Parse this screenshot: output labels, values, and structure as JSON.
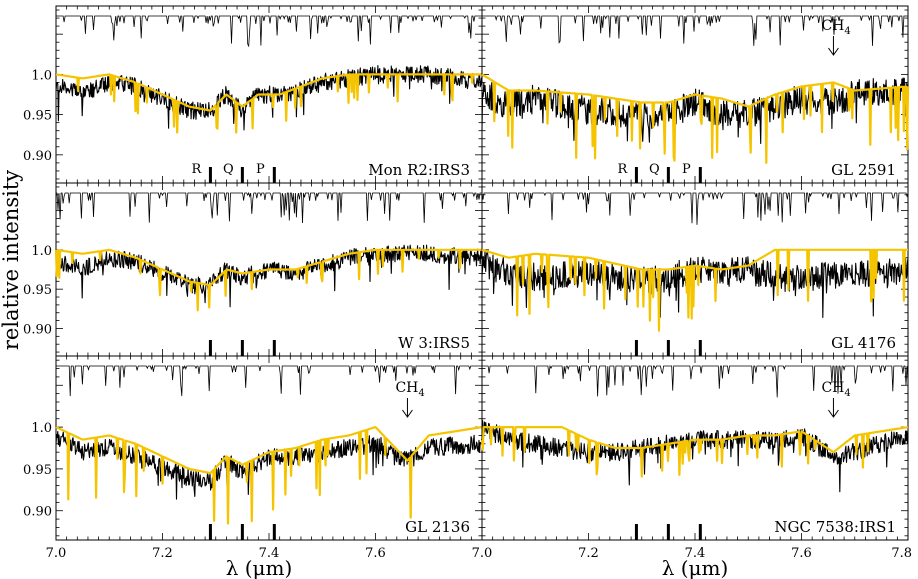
{
  "figure": {
    "ylabel": "relative intensity",
    "xlabel": "λ (μm)",
    "model_color": "#f5c400",
    "data_color": "#000000",
    "telluric_color": "#000000"
  },
  "chart_data": [
    {
      "type": "line",
      "panel": "Mon R2:IRS3",
      "xlim": [
        7.0,
        7.8
      ],
      "ylim": [
        0.865,
        1.085
      ],
      "yticks": [
        "1.0",
        "0.95",
        "0.90"
      ],
      "xticks": [],
      "branch_labels": [
        "R",
        "Q",
        "P"
      ],
      "branch_positions": [
        7.29,
        7.35,
        7.41
      ],
      "series": [
        {
          "name": "",
          "kind": "observed",
          "x": [
            7.0,
            7.05,
            7.1,
            7.15,
            7.2,
            7.25,
            7.29,
            7.32,
            7.35,
            7.38,
            7.42,
            7.46,
            7.5,
            7.55,
            7.6,
            7.7,
            7.8
          ],
          "y": [
            0.99,
            0.975,
            0.99,
            0.985,
            0.97,
            0.955,
            0.955,
            0.975,
            0.955,
            0.975,
            0.975,
            0.98,
            0.99,
            0.995,
            1.0,
            1.0,
            0.99
          ]
        },
        {
          "name": "",
          "kind": "model",
          "x": [
            7.0,
            7.05,
            7.1,
            7.15,
            7.2,
            7.25,
            7.29,
            7.32,
            7.35,
            7.38,
            7.42,
            7.46,
            7.5,
            7.55,
            7.6,
            7.7,
            7.8
          ],
          "y": [
            1.0,
            0.995,
            1.0,
            0.99,
            0.975,
            0.96,
            0.955,
            0.975,
            0.96,
            0.975,
            0.975,
            0.985,
            0.995,
            1.0,
            1.0,
            1.0,
            1.0
          ]
        }
      ]
    },
    {
      "type": "line",
      "panel": "GL 2591",
      "xlim": [
        7.0,
        7.8
      ],
      "ylim": [
        0.865,
        1.085
      ],
      "yticks": [],
      "xticks": [],
      "branch_labels": [
        "R",
        "Q",
        "P"
      ],
      "branch_positions": [
        7.29,
        7.35,
        7.41
      ],
      "annotation": {
        "text": "CH",
        "sub": "4",
        "x": 7.66
      },
      "series": [
        {
          "name": "",
          "kind": "observed",
          "x": [
            7.0,
            7.05,
            7.1,
            7.2,
            7.3,
            7.35,
            7.4,
            7.45,
            7.5,
            7.55,
            7.6,
            7.66,
            7.7,
            7.8
          ],
          "y": [
            0.98,
            0.96,
            0.97,
            0.955,
            0.95,
            0.95,
            0.965,
            0.95,
            0.95,
            0.96,
            0.97,
            0.965,
            0.975,
            0.98
          ]
        },
        {
          "name": "",
          "kind": "model",
          "x": [
            7.0,
            7.05,
            7.1,
            7.2,
            7.3,
            7.35,
            7.4,
            7.45,
            7.5,
            7.55,
            7.6,
            7.66,
            7.7,
            7.8
          ],
          "y": [
            1.0,
            0.98,
            0.98,
            0.975,
            0.965,
            0.965,
            0.975,
            0.97,
            0.96,
            0.975,
            0.985,
            0.99,
            0.98,
            0.985
          ]
        }
      ]
    },
    {
      "type": "line",
      "panel": "W 3:IRS5",
      "xlim": [
        7.0,
        7.8
      ],
      "ylim": [
        0.865,
        1.085
      ],
      "yticks": [
        "1.0",
        "0.95",
        "0.90"
      ],
      "xticks": [],
      "branch_labels": [],
      "branch_positions": [
        7.29,
        7.35,
        7.41
      ],
      "series": [
        {
          "name": "",
          "kind": "observed",
          "x": [
            7.0,
            7.05,
            7.1,
            7.15,
            7.2,
            7.25,
            7.29,
            7.32,
            7.35,
            7.4,
            7.45,
            7.5,
            7.55,
            7.6,
            7.7,
            7.8
          ],
          "y": [
            0.985,
            0.975,
            0.99,
            0.985,
            0.97,
            0.955,
            0.955,
            0.975,
            0.965,
            0.975,
            0.97,
            0.98,
            0.99,
            0.995,
            0.995,
            0.99
          ]
        },
        {
          "name": "",
          "kind": "model",
          "x": [
            7.0,
            7.05,
            7.1,
            7.15,
            7.2,
            7.25,
            7.29,
            7.32,
            7.35,
            7.4,
            7.45,
            7.5,
            7.55,
            7.6,
            7.7,
            7.8
          ],
          "y": [
            1.0,
            0.995,
            1.0,
            0.99,
            0.975,
            0.96,
            0.955,
            0.975,
            0.97,
            0.975,
            0.975,
            0.985,
            0.995,
            1.0,
            1.0,
            1.0
          ]
        }
      ]
    },
    {
      "type": "line",
      "panel": "GL 4176",
      "xlim": [
        7.0,
        7.8
      ],
      "ylim": [
        0.865,
        1.085
      ],
      "yticks": [],
      "xticks": [],
      "branch_labels": [],
      "branch_positions": [
        7.29,
        7.35,
        7.41
      ],
      "series": [
        {
          "name": "",
          "kind": "observed",
          "x": [
            7.0,
            7.05,
            7.1,
            7.2,
            7.3,
            7.35,
            7.4,
            7.45,
            7.5,
            7.55,
            7.6,
            7.7,
            7.8
          ],
          "y": [
            0.985,
            0.97,
            0.965,
            0.97,
            0.96,
            0.965,
            0.975,
            0.97,
            0.975,
            0.965,
            0.965,
            0.97,
            0.975
          ]
        },
        {
          "name": "",
          "kind": "model",
          "x": [
            7.0,
            7.05,
            7.1,
            7.2,
            7.3,
            7.35,
            7.4,
            7.45,
            7.5,
            7.55,
            7.6,
            7.7,
            7.8
          ],
          "y": [
            1.0,
            0.99,
            0.995,
            0.99,
            0.975,
            0.975,
            0.98,
            0.975,
            0.98,
            1.0,
            1.0,
            1.0,
            1.0
          ]
        }
      ]
    },
    {
      "type": "line",
      "panel": "GL 2136",
      "xlim": [
        7.0,
        7.8
      ],
      "ylim": [
        0.865,
        1.085
      ],
      "yticks": [
        "1.0",
        "0.95",
        "0.90"
      ],
      "xticks": [
        "7.0",
        "7.2",
        "7.4",
        "7.6"
      ],
      "branch_labels": [],
      "branch_positions": [
        7.29,
        7.35,
        7.41
      ],
      "annotation": {
        "text": "CH",
        "sub": "4",
        "x": 7.66
      },
      "series": [
        {
          "name": "",
          "kind": "observed",
          "x": [
            7.0,
            7.05,
            7.1,
            7.15,
            7.2,
            7.25,
            7.29,
            7.32,
            7.35,
            7.4,
            7.45,
            7.5,
            7.55,
            7.6,
            7.66,
            7.7,
            7.8
          ],
          "y": [
            0.99,
            0.97,
            0.975,
            0.965,
            0.95,
            0.94,
            0.935,
            0.96,
            0.945,
            0.965,
            0.965,
            0.97,
            0.975,
            0.98,
            0.96,
            0.975,
            0.98
          ]
        },
        {
          "name": "",
          "kind": "model",
          "x": [
            7.0,
            7.05,
            7.1,
            7.15,
            7.2,
            7.25,
            7.29,
            7.32,
            7.35,
            7.4,
            7.45,
            7.5,
            7.55,
            7.6,
            7.66,
            7.7,
            7.8
          ],
          "y": [
            1.0,
            0.985,
            0.99,
            0.98,
            0.965,
            0.95,
            0.945,
            0.965,
            0.955,
            0.97,
            0.975,
            0.985,
            0.99,
            1.0,
            0.96,
            0.99,
            1.0
          ]
        }
      ]
    },
    {
      "type": "line",
      "panel": "NGC 7538:IRS1",
      "xlim": [
        7.0,
        7.8
      ],
      "ylim": [
        0.865,
        1.085
      ],
      "yticks": [],
      "xticks": [
        "7.0",
        "7.2",
        "7.4",
        "7.6",
        "7.8"
      ],
      "branch_labels": [],
      "branch_positions": [
        7.29,
        7.35,
        7.41
      ],
      "annotation": {
        "text": "CH",
        "sub": "4",
        "x": 7.66
      },
      "series": [
        {
          "name": "",
          "kind": "observed",
          "x": [
            7.0,
            7.05,
            7.1,
            7.15,
            7.2,
            7.25,
            7.3,
            7.35,
            7.4,
            7.45,
            7.5,
            7.55,
            7.6,
            7.66,
            7.7,
            7.75,
            7.8
          ],
          "y": [
            1.0,
            0.985,
            0.98,
            0.975,
            0.97,
            0.97,
            0.975,
            0.98,
            0.985,
            0.985,
            0.985,
            0.985,
            0.99,
            0.965,
            0.97,
            0.98,
            0.99
          ]
        },
        {
          "name": "",
          "kind": "model",
          "x": [
            7.0,
            7.05,
            7.1,
            7.15,
            7.2,
            7.25,
            7.3,
            7.35,
            7.4,
            7.45,
            7.5,
            7.55,
            7.6,
            7.66,
            7.7,
            7.75,
            7.8
          ],
          "y": [
            1.0,
            1.0,
            1.0,
            1.0,
            0.985,
            0.975,
            0.975,
            0.98,
            0.985,
            0.985,
            0.99,
            0.99,
            0.995,
            0.97,
            0.99,
            0.995,
            1.0
          ]
        }
      ]
    }
  ]
}
